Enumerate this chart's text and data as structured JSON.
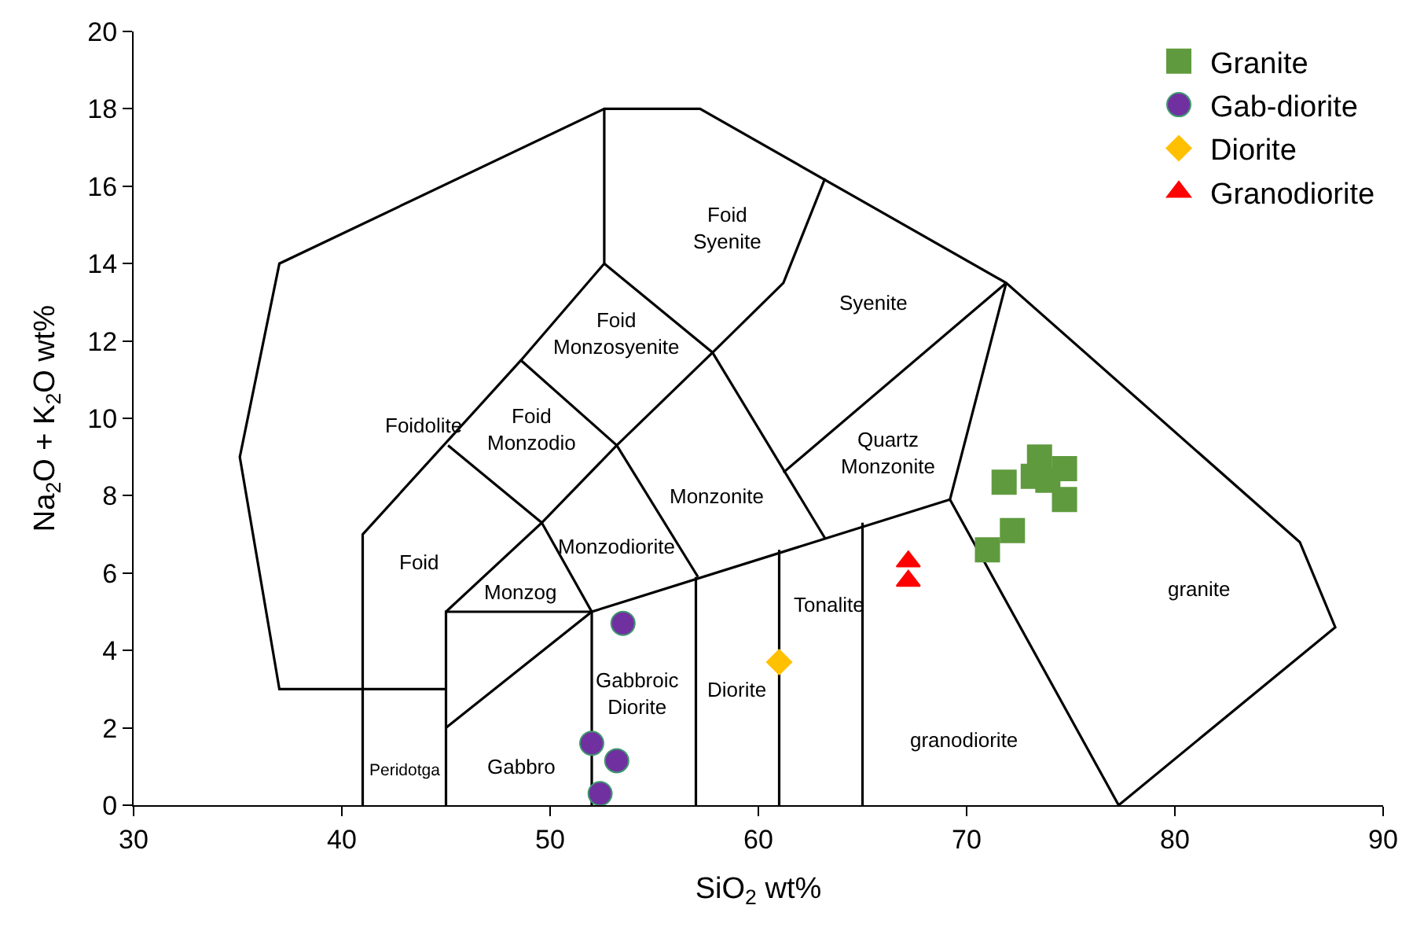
{
  "chart_data": {
    "type": "scatter",
    "xlabel": "SiO$_{2}$ wt%",
    "ylabel": "Na$_{2}$O + K$_{2}$O wt%",
    "xlim": [
      30,
      90
    ],
    "xticks": [
      30,
      40,
      50,
      60,
      70,
      80,
      90
    ],
    "ylim": [
      0,
      20
    ],
    "yticks": [
      0,
      2,
      4,
      6,
      8,
      10,
      12,
      14,
      16,
      18,
      20
    ],
    "legend": "top right",
    "series": [
      {
        "type": "line",
        "marker": "none",
        "color": "#000000",
        "x": [
          45,
          37,
          35.1,
          37,
          52.6,
          57.2,
          71.9,
          86,
          87.7,
          77.3,
          69.2,
          71.9
        ],
        "values": [
          3,
          3,
          9,
          14,
          18,
          18,
          13.5,
          6.8,
          4.6,
          0,
          7.9,
          13.5
        ]
      },
      {
        "type": "line",
        "marker": "none",
        "color": "#000000",
        "x": [
          45,
          52,
          69.2
        ],
        "values": [
          2,
          5,
          7.9
        ]
      },
      {
        "type": "line",
        "marker": "none",
        "color": "#000000",
        "x": [
          41,
          41,
          48.6,
          52.6,
          52.6
        ],
        "values": [
          0,
          7,
          11.5,
          14,
          18
        ]
      },
      {
        "type": "line",
        "marker": "none",
        "color": "#000000",
        "x": [
          52.6,
          57.8,
          61.2,
          63.2
        ],
        "values": [
          14,
          11.7,
          13.5,
          16.2
        ]
      },
      {
        "type": "line",
        "marker": "none",
        "color": "#000000",
        "x": [
          57.8,
          63.2
        ],
        "values": [
          11.7,
          6.9
        ]
      },
      {
        "type": "line",
        "marker": "none",
        "color": "#000000",
        "x": [
          71.9,
          61.2
        ],
        "values": [
          13.5,
          8.6
        ]
      },
      {
        "type": "line",
        "marker": "none",
        "color": "#000000",
        "x": [
          48.6,
          53.2,
          57.8
        ],
        "values": [
          11.5,
          9.3,
          11.7
        ]
      },
      {
        "type": "line",
        "marker": "none",
        "color": "#000000",
        "x": [
          53.2,
          57.1
        ],
        "values": [
          9.3,
          5.9
        ]
      },
      {
        "type": "line",
        "marker": "none",
        "color": "#000000",
        "x": [
          45.1,
          49.6,
          53.2
        ],
        "values": [
          9.3,
          7.3,
          9.3
        ]
      },
      {
        "type": "line",
        "marker": "none",
        "color": "#000000",
        "x": [
          45,
          49.6,
          52
        ],
        "values": [
          5,
          7.3,
          5
        ]
      },
      {
        "type": "line",
        "marker": "none",
        "color": "#000000",
        "x": [
          45,
          45,
          52,
          52
        ],
        "values": [
          0,
          5,
          5,
          0
        ]
      },
      {
        "type": "line",
        "marker": "none",
        "color": "#000000",
        "x": [
          57,
          57
        ],
        "values": [
          0,
          5.9
        ]
      },
      {
        "type": "line",
        "marker": "none",
        "color": "#000000",
        "x": [
          61,
          61
        ],
        "values": [
          0,
          6.6
        ]
      },
      {
        "type": "line",
        "marker": "none",
        "color": "#000000",
        "x": [
          65,
          65
        ],
        "values": [
          0,
          7.3
        ]
      },
      {
        "name": "Granite",
        "marker": "square",
        "color": "#5f9a3e",
        "x": [
          71.8,
          73.5,
          73.2,
          73.9,
          74.7,
          74.7,
          72.2,
          71.0
        ],
        "values": [
          8.35,
          9.0,
          8.5,
          8.4,
          8.7,
          7.9,
          7.1,
          6.6
        ]
      },
      {
        "name": "Gab-diorite",
        "marker": "circle",
        "color": "#7030a0",
        "x": [
          53.5,
          52.0,
          53.2,
          52.4
        ],
        "values": [
          4.7,
          1.6,
          1.15,
          0.3
        ]
      },
      {
        "name": "Diorite",
        "marker": "diamond",
        "color": "#ffc000",
        "x": [
          61.0
        ],
        "values": [
          3.7
        ]
      },
      {
        "name": "Granodiorite",
        "marker": "triangle",
        "color": "#ff0000",
        "x": [
          67.2,
          67.2
        ],
        "values": [
          6.3,
          5.8
        ]
      }
    ],
    "annotations": [
      "Foidolite",
      "Foid\nSyenite",
      "Syenite",
      "Foid\nMonzosyenite",
      "Foid\nMonzodio",
      "Quartz\nMonzonite",
      "Monzonite",
      "Monzodiorite",
      "Foid",
      "Monzog",
      "Tonalite",
      "Gabbroic\nDiorite",
      "Diorite",
      "Peridotga",
      "Gabbro",
      "granodiorite",
      "granite"
    ]
  }
}
